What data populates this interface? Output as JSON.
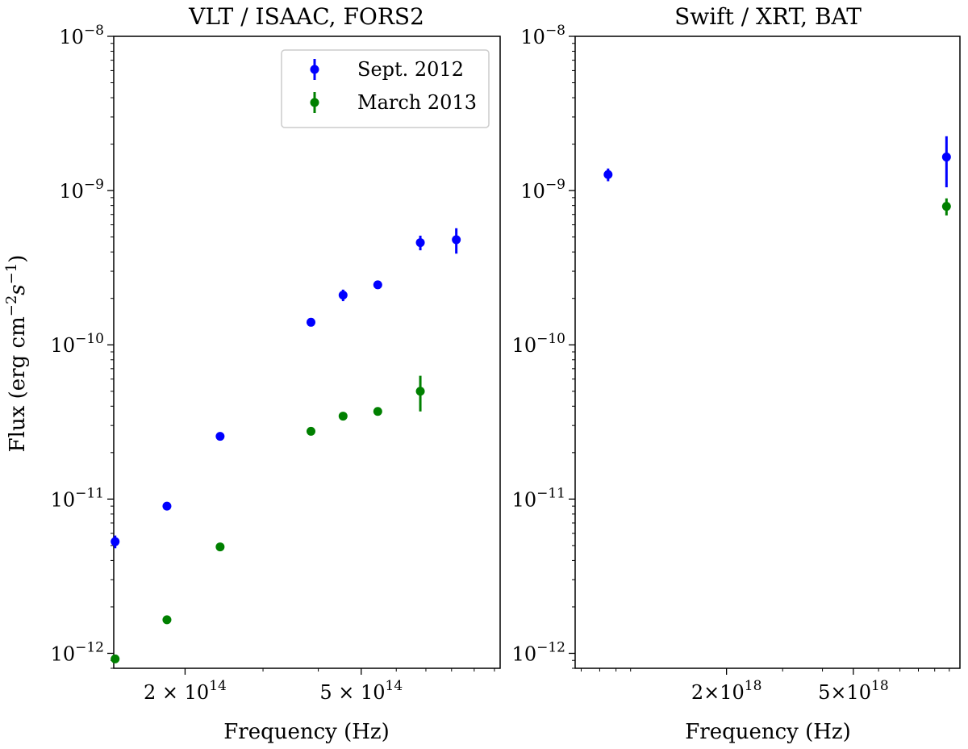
{
  "chart_data": [
    {
      "type": "scatter",
      "title": "VLT / ISAAC, FORS2",
      "xlabel": "Frequency (Hz)",
      "ylabel_parts": [
        "Flux (erg cm",
        "−2",
        "s",
        "−1",
        ")"
      ],
      "xscale": "log",
      "yscale": "log",
      "xlim": [
        138000000000000.0,
        1030000000000000.0
      ],
      "ylim": [
        8e-13,
        1e-08
      ],
      "xticks": [
        {
          "value": 200000000000000.0,
          "mantissa": "2 × 10",
          "exponent": "14"
        },
        {
          "value": 500000000000000.0,
          "mantissa": "5 × 10",
          "exponent": "14"
        }
      ],
      "yticks": [
        {
          "value": 1e-08,
          "base": "10",
          "exponent": "−8"
        },
        {
          "value": 1e-09,
          "base": "10",
          "exponent": "−9"
        },
        {
          "value": 1e-10,
          "base": "10",
          "exponent": "−10"
        },
        {
          "value": 1e-11,
          "base": "10",
          "exponent": "−11"
        },
        {
          "value": 1e-12,
          "base": "10",
          "exponent": "−12"
        }
      ],
      "legend": {
        "position": "top-right",
        "entries": [
          "Sept. 2012",
          "March 2013"
        ]
      },
      "series": [
        {
          "name": "Sept. 2012",
          "color": "#0000ff",
          "points": [
            {
              "x": 139000000000000.0,
              "y": 5.3e-12,
              "err": 5e-13
            },
            {
              "x": 182000000000000.0,
              "y": 9e-12,
              "err": 2e-13
            },
            {
              "x": 240000000000000.0,
              "y": 2.55e-11,
              "err": 5e-13
            },
            {
              "x": 385000000000000.0,
              "y": 1.4e-10,
              "err": 5e-12
            },
            {
              "x": 455000000000000.0,
              "y": 2.1e-10,
              "err": 1.8e-11
            },
            {
              "x": 545000000000000.0,
              "y": 2.45e-10,
              "err": 7e-12
            },
            {
              "x": 680000000000000.0,
              "y": 4.6e-10,
              "err": 5e-11
            },
            {
              "x": 820000000000000.0,
              "y": 4.8e-10,
              "err": 9e-11
            }
          ]
        },
        {
          "name": "March 2013",
          "color": "#008000",
          "points": [
            {
              "x": 139000000000000.0,
              "y": 9.2e-13,
              "err": 3e-14
            },
            {
              "x": 182000000000000.0,
              "y": 1.65e-12,
              "err": 5e-14
            },
            {
              "x": 240000000000000.0,
              "y": 4.9e-12,
              "err": 1e-13
            },
            {
              "x": 385000000000000.0,
              "y": 2.75e-11,
              "err": 5e-13
            },
            {
              "x": 455000000000000.0,
              "y": 3.45e-11,
              "err": 5e-13
            },
            {
              "x": 545000000000000.0,
              "y": 3.7e-11,
              "err": 8e-13
            },
            {
              "x": 680000000000000.0,
              "y": 5e-11,
              "err": 1.3e-11
            }
          ]
        }
      ]
    },
    {
      "type": "scatter",
      "title": "Swift / XRT, BAT",
      "xlabel": "Frequency (Hz)",
      "xscale": "log",
      "yscale": "log",
      "xlim": [
        6.7e+17,
        1.08e+19
      ],
      "ylim": [
        8e-13,
        1e-08
      ],
      "xticks": [
        {
          "value": 2e+18,
          "mantissa": "2×10",
          "exponent": "18"
        },
        {
          "value": 5e+18,
          "mantissa": "5×10",
          "exponent": "18"
        }
      ],
      "yticks": [
        {
          "value": 1e-08,
          "base": "10",
          "exponent": "−8"
        },
        {
          "value": 1e-09,
          "base": "10",
          "exponent": "−9"
        },
        {
          "value": 1e-10,
          "base": "10",
          "exponent": "−10"
        },
        {
          "value": 1e-11,
          "base": "10",
          "exponent": "−11"
        },
        {
          "value": 1e-12,
          "base": "10",
          "exponent": "−12"
        }
      ],
      "series": [
        {
          "name": "Sept. 2012",
          "color": "#0000ff",
          "points": [
            {
              "x": 8.5e+17,
              "y": 1.27e-09,
              "err": 1.2e-10
            },
            {
              "x": 9.8e+18,
              "y": 1.65e-09,
              "err": 6e-10
            }
          ]
        },
        {
          "name": "March 2013",
          "color": "#008000",
          "points": [
            {
              "x": 9.8e+18,
              "y": 7.9e-10,
              "err": 1e-10
            }
          ]
        }
      ]
    }
  ]
}
